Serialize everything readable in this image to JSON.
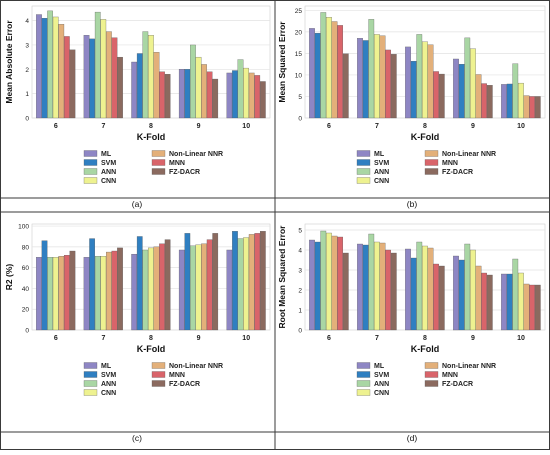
{
  "colors": {
    "ML": "#8e86c4",
    "SVM": "#2f7fc1",
    "ANN": "#a9d6a4",
    "CNN": "#eef290",
    "Non-Linear NNR": "#e3b07a",
    "MNN": "#d9646a",
    "FZ-DACR": "#8b6a5f"
  },
  "legend_order": [
    "ML",
    "Non-Linear NNR",
    "SVM",
    "MNN",
    "ANN",
    "FZ-DACR",
    "CNN"
  ],
  "chart_data": [
    {
      "type": "bar",
      "panel_label": "(a)",
      "ylabel": "Mean Absolute Error",
      "xlabel": "K-Fold",
      "categories": [
        "6",
        "7",
        "8",
        "9",
        "10"
      ],
      "ylim": [
        0,
        4.6
      ],
      "yticks": [
        0,
        1,
        2,
        3,
        4
      ],
      "ytick_labels": [
        "0",
        "1",
        "2",
        "3",
        "4"
      ],
      "grid": true,
      "legend_position": "bottom",
      "series": [
        {
          "name": "ML",
          "values": [
            4.25,
            3.4,
            2.3,
            2.0,
            1.85
          ]
        },
        {
          "name": "SVM",
          "values": [
            4.1,
            3.25,
            2.65,
            2.0,
            1.95
          ]
        },
        {
          "name": "ANN",
          "values": [
            4.4,
            4.35,
            3.55,
            3.0,
            2.4
          ]
        },
        {
          "name": "CNN",
          "values": [
            4.15,
            4.05,
            3.4,
            2.5,
            2.05
          ]
        },
        {
          "name": "Non-Linear NNR",
          "values": [
            3.85,
            3.55,
            2.7,
            2.2,
            1.85
          ]
        },
        {
          "name": "MNN",
          "values": [
            3.35,
            3.3,
            1.9,
            1.9,
            1.75
          ]
        },
        {
          "name": "FZ-DACR",
          "values": [
            2.8,
            2.5,
            1.8,
            1.6,
            1.5
          ]
        }
      ]
    },
    {
      "type": "bar",
      "panel_label": "(b)",
      "ylabel": "Mean Squared Error",
      "xlabel": "K-Fold",
      "categories": [
        "6",
        "7",
        "8",
        "9",
        "10"
      ],
      "ylim": [
        0,
        26
      ],
      "yticks": [
        0,
        5,
        10,
        15,
        20,
        25
      ],
      "ytick_labels": [
        "0",
        "5",
        "10",
        "15",
        "20",
        "25"
      ],
      "grid": true,
      "legend_position": "bottom",
      "series": [
        {
          "name": "ML",
          "values": [
            20.8,
            18.5,
            16.5,
            13.7,
            7.8
          ]
        },
        {
          "name": "SVM",
          "values": [
            19.7,
            18.0,
            13.2,
            12.5,
            7.9
          ]
        },
        {
          "name": "ANN",
          "values": [
            24.5,
            22.9,
            19.4,
            18.6,
            12.6
          ]
        },
        {
          "name": "CNN",
          "values": [
            23.4,
            19.4,
            17.7,
            16.1,
            8.1
          ]
        },
        {
          "name": "Non-Linear NNR",
          "values": [
            22.4,
            19.1,
            17.0,
            10.1,
            5.2
          ]
        },
        {
          "name": "MNN",
          "values": [
            21.5,
            15.8,
            10.8,
            8.0,
            5.0
          ]
        },
        {
          "name": "FZ-DACR",
          "values": [
            14.9,
            14.8,
            10.2,
            7.6,
            5.0
          ]
        }
      ]
    },
    {
      "type": "bar",
      "panel_label": "(c)",
      "ylabel": "R2 (%)",
      "xlabel": "K-Fold",
      "categories": [
        "6",
        "7",
        "8",
        "9",
        "10"
      ],
      "ylim": [
        0,
        102
      ],
      "yticks": [
        0,
        20,
        40,
        60,
        80,
        100
      ],
      "ytick_labels": [
        "0",
        "20",
        "40",
        "60",
        "80",
        "100"
      ],
      "grid": true,
      "legend_position": "bottom",
      "series": [
        {
          "name": "ML",
          "values": [
            70,
            70,
            73,
            77,
            77
          ]
        },
        {
          "name": "SVM",
          "values": [
            86,
            88,
            90,
            93,
            95
          ]
        },
        {
          "name": "ANN",
          "values": [
            70,
            71,
            77,
            81,
            88
          ]
        },
        {
          "name": "CNN",
          "values": [
            70,
            71,
            79,
            82,
            89
          ]
        },
        {
          "name": "Non-Linear NNR",
          "values": [
            71,
            75,
            80,
            83,
            92
          ]
        },
        {
          "name": "MNN",
          "values": [
            72,
            76,
            83,
            87,
            93
          ]
        },
        {
          "name": "FZ-DACR",
          "values": [
            76,
            79,
            87,
            93,
            95
          ]
        }
      ]
    },
    {
      "type": "bar",
      "panel_label": "(d)",
      "ylabel": "Root Mean Squared Error",
      "xlabel": "K-Fold",
      "categories": [
        "6",
        "7",
        "8",
        "9",
        "10"
      ],
      "ylim": [
        0,
        5.3
      ],
      "yticks": [
        0,
        1,
        2,
        3,
        4,
        5
      ],
      "ytick_labels": [
        "0",
        "1",
        "2",
        "3",
        "4",
        "5"
      ],
      "grid": true,
      "legend_position": "bottom",
      "series": [
        {
          "name": "ML",
          "values": [
            4.5,
            4.3,
            4.05,
            3.7,
            2.8
          ]
        },
        {
          "name": "SVM",
          "values": [
            4.4,
            4.25,
            3.6,
            3.5,
            2.8
          ]
        },
        {
          "name": "ANN",
          "values": [
            4.95,
            4.8,
            4.4,
            4.3,
            3.55
          ]
        },
        {
          "name": "CNN",
          "values": [
            4.85,
            4.4,
            4.2,
            4.0,
            2.85
          ]
        },
        {
          "name": "Non-Linear NNR",
          "values": [
            4.7,
            4.35,
            4.1,
            3.2,
            2.3
          ]
        },
        {
          "name": "MNN",
          "values": [
            4.65,
            4.0,
            3.3,
            2.85,
            2.25
          ]
        },
        {
          "name": "FZ-DACR",
          "values": [
            3.85,
            3.85,
            3.2,
            2.75,
            2.25
          ]
        }
      ]
    }
  ]
}
